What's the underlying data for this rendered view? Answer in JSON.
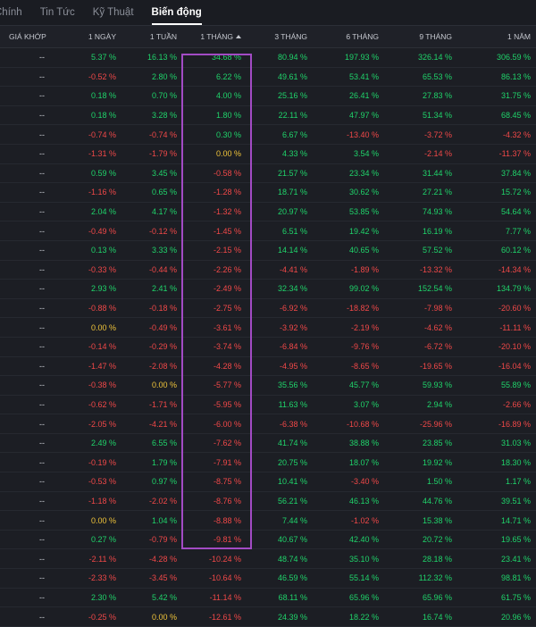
{
  "tabs": [
    "Chính",
    "Tin Tức",
    "Kỹ Thuật",
    "Biến động"
  ],
  "active_tab": 3,
  "columns": [
    "GIÁ KHỚP",
    "1 NGÀY",
    "1 TUẦN",
    "1 THÁNG",
    "3 THÁNG",
    "6 THÁNG",
    "9 THÁNG",
    "1 NĂM"
  ],
  "sorted_column": 3,
  "colors": {
    "positive": "#1fd36a",
    "negative": "#f04848",
    "unchanged": "#f0c43a",
    "highlight_box": "#a24bc4"
  },
  "rows": [
    [
      "--",
      "5.37 %",
      "16.13 %",
      "34.68 %",
      "80.94 %",
      "197.93 %",
      "326.14 %",
      "306.59 %"
    ],
    [
      "--",
      "-0.52 %",
      "2.80 %",
      "6.22 %",
      "49.61 %",
      "53.41 %",
      "65.53 %",
      "86.13 %"
    ],
    [
      "--",
      "0.18 %",
      "0.70 %",
      "4.00 %",
      "25.16 %",
      "26.41 %",
      "27.83 %",
      "31.75 %"
    ],
    [
      "--",
      "0.18 %",
      "3.28 %",
      "1.80 %",
      "22.11 %",
      "47.97 %",
      "51.34 %",
      "68.45 %"
    ],
    [
      "--",
      "-0.74 %",
      "-0.74 %",
      "0.30 %",
      "6.67 %",
      "-13.40 %",
      "-3.72 %",
      "-4.32 %"
    ],
    [
      "--",
      "-1.31 %",
      "-1.79 %",
      "0.00 %",
      "4.33 %",
      "3.54 %",
      "-2.14 %",
      "-11.37 %"
    ],
    [
      "--",
      "0.59 %",
      "3.45 %",
      "-0.58 %",
      "21.57 %",
      "23.34 %",
      "31.44 %",
      "37.84 %"
    ],
    [
      "--",
      "-1.16 %",
      "0.65 %",
      "-1.28 %",
      "18.71 %",
      "30.62 %",
      "27.21 %",
      "15.72 %"
    ],
    [
      "--",
      "2.04 %",
      "4.17 %",
      "-1.32 %",
      "20.97 %",
      "53.85 %",
      "74.93 %",
      "54.64 %"
    ],
    [
      "--",
      "-0.49 %",
      "-0.12 %",
      "-1.45 %",
      "6.51 %",
      "19.42 %",
      "16.19 %",
      "7.77 %"
    ],
    [
      "--",
      "0.13 %",
      "3.33 %",
      "-2.15 %",
      "14.14 %",
      "40.65 %",
      "57.52 %",
      "60.12 %"
    ],
    [
      "--",
      "-0.33 %",
      "-0.44 %",
      "-2.26 %",
      "-4.41 %",
      "-1.89 %",
      "-13.32 %",
      "-14.34 %"
    ],
    [
      "--",
      "2.93 %",
      "2.41 %",
      "-2.49 %",
      "32.34 %",
      "99.02 %",
      "152.54 %",
      "134.79 %"
    ],
    [
      "--",
      "-0.88 %",
      "-0.18 %",
      "-2.75 %",
      "-6.92 %",
      "-18.82 %",
      "-7.98 %",
      "-20.60 %"
    ],
    [
      "--",
      "0.00 %",
      "-0.49 %",
      "-3.61 %",
      "-3.92 %",
      "-2.19 %",
      "-4.62 %",
      "-11.11 %"
    ],
    [
      "--",
      "-0.14 %",
      "-0.29 %",
      "-3.74 %",
      "-6.84 %",
      "-9.76 %",
      "-6.72 %",
      "-20.10 %"
    ],
    [
      "--",
      "-1.47 %",
      "-2.08 %",
      "-4.28 %",
      "-4.95 %",
      "-8.65 %",
      "-19.65 %",
      "-16.04 %"
    ],
    [
      "--",
      "-0.38 %",
      "0.00 %",
      "-5.77 %",
      "35.56 %",
      "45.77 %",
      "59.93 %",
      "55.89 %"
    ],
    [
      "--",
      "-0.62 %",
      "-1.71 %",
      "-5.95 %",
      "11.63 %",
      "3.07 %",
      "2.94 %",
      "-2.66 %"
    ],
    [
      "--",
      "-2.05 %",
      "-4.21 %",
      "-6.00 %",
      "-6.38 %",
      "-10.68 %",
      "-25.96 %",
      "-16.89 %"
    ],
    [
      "--",
      "2.49 %",
      "6.55 %",
      "-7.62 %",
      "41.74 %",
      "38.88 %",
      "23.85 %",
      "31.03 %"
    ],
    [
      "--",
      "-0.19 %",
      "1.79 %",
      "-7.91 %",
      "20.75 %",
      "18.07 %",
      "19.92 %",
      "18.30 %"
    ],
    [
      "--",
      "-0.53 %",
      "0.97 %",
      "-8.75 %",
      "10.41 %",
      "-3.40 %",
      "1.50 %",
      "1.17 %"
    ],
    [
      "--",
      "-1.18 %",
      "-2.02 %",
      "-8.76 %",
      "56.21 %",
      "46.13 %",
      "44.76 %",
      "39.51 %"
    ],
    [
      "--",
      "0.00 %",
      "1.04 %",
      "-8.88 %",
      "7.44 %",
      "-1.02 %",
      "15.38 %",
      "14.71 %"
    ],
    [
      "--",
      "0.27 %",
      "-0.79 %",
      "-9.81 %",
      "40.67 %",
      "42.40 %",
      "20.72 %",
      "19.65 %"
    ],
    [
      "--",
      "-2.11 %",
      "-4.28 %",
      "-10.24 %",
      "48.74 %",
      "35.10 %",
      "28.18 %",
      "23.41 %"
    ],
    [
      "--",
      "-2.33 %",
      "-3.45 %",
      "-10.64 %",
      "46.59 %",
      "55.14 %",
      "112.32 %",
      "98.81 %"
    ],
    [
      "--",
      "2.30 %",
      "5.42 %",
      "-11.14 %",
      "68.11 %",
      "65.96 %",
      "65.96 %",
      "61.75 %"
    ],
    [
      "--",
      "-0.25 %",
      "0.00 %",
      "-12.61 %",
      "24.39 %",
      "18.22 %",
      "16.74 %",
      "20.96 %"
    ]
  ]
}
